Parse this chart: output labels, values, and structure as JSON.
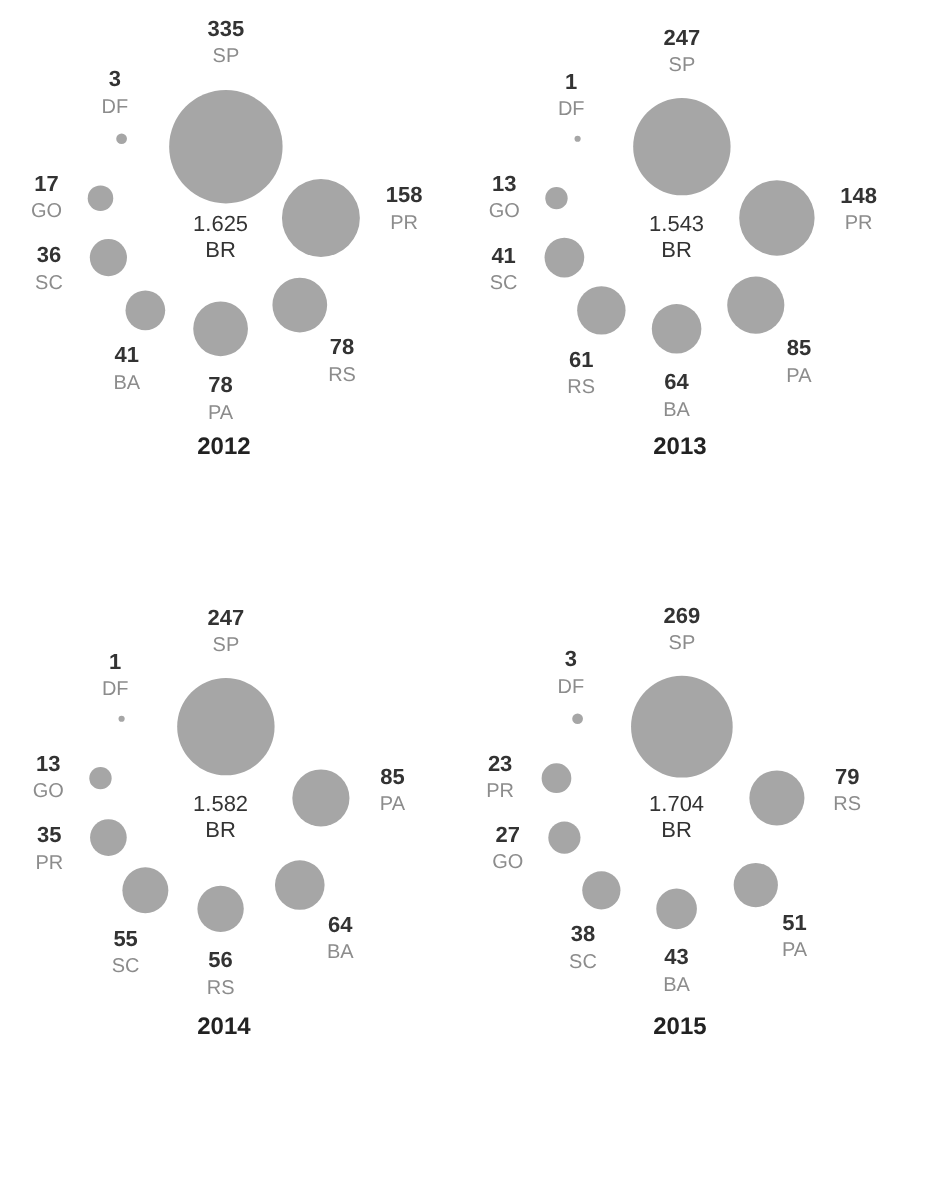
{
  "chart_data": [
    {
      "type": "other",
      "title": "2012",
      "categories": [
        "SP",
        "PR",
        "RS",
        "PA",
        "BA",
        "SC",
        "GO",
        "DF"
      ],
      "values": [
        335,
        158,
        78,
        78,
        41,
        36,
        17,
        3
      ],
      "color": "#a6a6a6",
      "data_labels": true,
      "annotations": [
        "1.625",
        "BR"
      ]
    },
    {
      "type": "other",
      "title": "2013",
      "categories": [
        "SP",
        "PR",
        "PA",
        "BA",
        "RS",
        "SC",
        "GO",
        "DF"
      ],
      "values": [
        247,
        148,
        85,
        64,
        61,
        41,
        13,
        1
      ],
      "color": "#a6a6a6",
      "data_labels": true,
      "annotations": [
        "1.543",
        "BR"
      ]
    },
    {
      "type": "other",
      "title": "2014",
      "categories": [
        "SP",
        "PA",
        "BA",
        "RS",
        "SC",
        "PR",
        "GO",
        "DF"
      ],
      "values": [
        247,
        85,
        64,
        56,
        55,
        35,
        13,
        1
      ],
      "color": "#a6a6a6",
      "data_labels": true,
      "annotations": [
        "1.582",
        "BR"
      ]
    },
    {
      "type": "other",
      "title": "2015",
      "categories": [
        "SP",
        "RS",
        "PA",
        "BA",
        "SC",
        "GO",
        "PR",
        "DF"
      ],
      "values": [
        269,
        79,
        51,
        43,
        38,
        27,
        23,
        3
      ],
      "color": "#a6a6a6",
      "data_labels": true,
      "annotations": [
        "1.704",
        "BR"
      ]
    }
  ]
}
